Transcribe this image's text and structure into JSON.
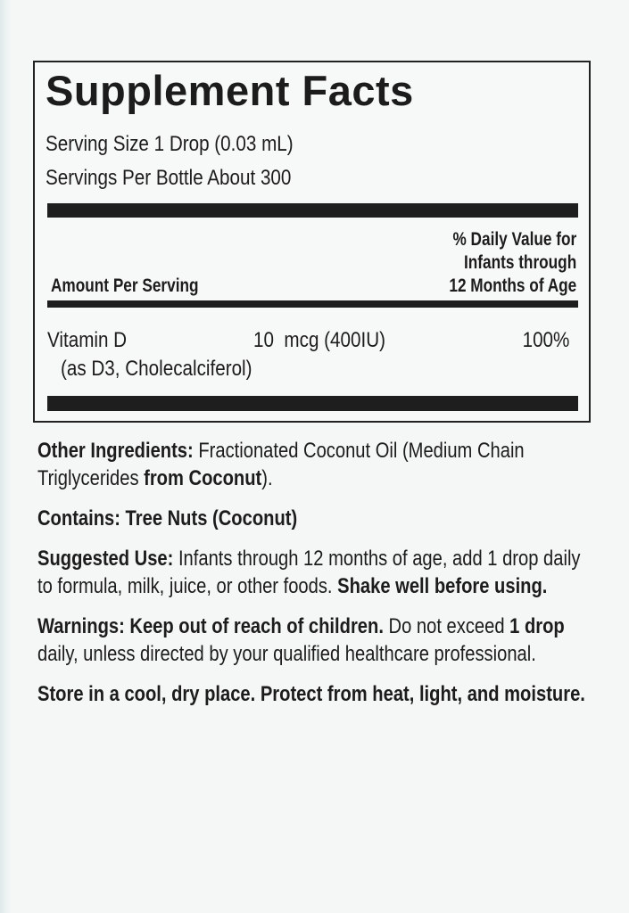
{
  "facts": {
    "title": "Supplement Facts",
    "serving_size": "Serving Size 1 Drop (0.03 mL)",
    "servings_per": "Servings Per Bottle About 300",
    "amount_header": "Amount Per Serving",
    "dv_header": [
      "% Daily Value for",
      "Infants through",
      "12 Months of Age"
    ],
    "nutrient": {
      "name": "Vitamin D",
      "source": "(as D3, Cholecalciferol)",
      "amount": "10  mcg (400IU)",
      "dv": "100%"
    }
  },
  "paragraphs": [
    {
      "name": "other-ingredients",
      "runs": [
        {
          "t": "Other Ingredients:",
          "b": true
        },
        {
          "t": " Fractionated Coconut Oil (Medium Chain Triglycerides ",
          "b": false
        },
        {
          "t": "from Coconut",
          "b": true
        },
        {
          "t": ").",
          "b": false
        }
      ]
    },
    {
      "name": "contains",
      "runs": [
        {
          "t": "Contains: Tree Nuts (Coconut)",
          "b": true
        }
      ]
    },
    {
      "name": "suggested-use",
      "runs": [
        {
          "t": "Suggested Use:",
          "b": true
        },
        {
          "t": " Infants through 12 months of age, add 1 drop daily to formula, milk, juice, or other foods. ",
          "b": false
        },
        {
          "t": "Shake well before using.",
          "b": true
        }
      ]
    },
    {
      "name": "warnings",
      "runs": [
        {
          "t": "Warnings: Keep out of reach of children.",
          "b": true
        },
        {
          "t": " Do not exceed ",
          "b": false
        },
        {
          "t": "1 drop",
          "b": true
        },
        {
          "t": " daily, unless directed by your qualified healthcare professional.",
          "b": false
        }
      ]
    },
    {
      "name": "storage",
      "runs": [
        {
          "t": "Store in a cool, dry place. Protect from heat, light, and moisture.",
          "b": true
        }
      ]
    }
  ]
}
